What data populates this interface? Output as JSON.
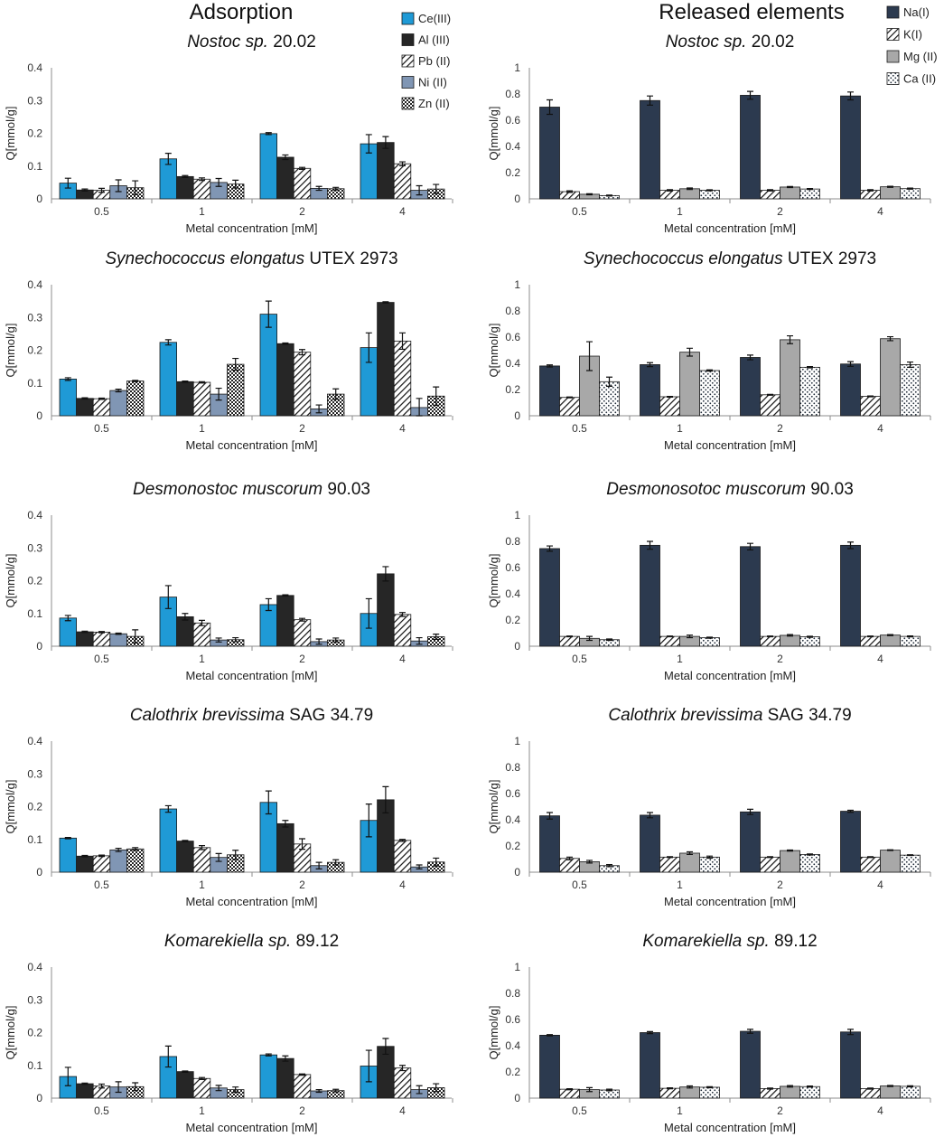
{
  "figure": {
    "left_title": "Adsorption",
    "right_title": "Released elements"
  },
  "chart_data": [
    {
      "type": "bar",
      "group": "adsorption",
      "title_italic": "Nostoc sp.",
      "title_rest": " 20.02",
      "xlabel": "Metal concentration [mM]",
      "ylabel": "Q[mmol/g]",
      "ylim": [
        0,
        0.4
      ],
      "yticks": [
        0,
        0.1,
        0.2,
        0.3,
        0.4
      ],
      "categories": [
        "0.5",
        "1",
        "2",
        "4"
      ],
      "series": [
        {
          "name": "Ce(III)",
          "values": [
            0.048,
            0.122,
            0.199,
            0.168
          ],
          "errors": [
            0.015,
            0.017,
            0.003,
            0.028
          ]
        },
        {
          "name": "Al (III)",
          "values": [
            0.027,
            0.068,
            0.127,
            0.172
          ],
          "errors": [
            0.003,
            0.003,
            0.007,
            0.018
          ]
        },
        {
          "name": "Pb (II)",
          "values": [
            0.026,
            0.06,
            0.093,
            0.107
          ],
          "errors": [
            0.006,
            0.004,
            0.003,
            0.006
          ]
        },
        {
          "name": "Ni (II)",
          "values": [
            0.04,
            0.05,
            0.032,
            0.026
          ],
          "errors": [
            0.018,
            0.012,
            0.006,
            0.014
          ]
        },
        {
          "name": "Zn (II)",
          "values": [
            0.034,
            0.045,
            0.031,
            0.03
          ],
          "errors": [
            0.021,
            0.012,
            0.004,
            0.014
          ]
        }
      ]
    },
    {
      "type": "bar",
      "group": "released",
      "title_italic": "Nostoc sp.",
      "title_rest": " 20.02",
      "xlabel": "Metal concentration [mM]",
      "ylabel": "Q[mmol/g]",
      "ylim": [
        0,
        1
      ],
      "yticks": [
        0,
        0.2,
        0.4,
        0.6,
        0.8,
        1
      ],
      "categories": [
        "0.5",
        "1",
        "2",
        "4"
      ],
      "series": [
        {
          "name": "Na(I)",
          "values": [
            0.7,
            0.75,
            0.79,
            0.785
          ],
          "errors": [
            0.055,
            0.035,
            0.03,
            0.03
          ]
        },
        {
          "name": "K(I)",
          "values": [
            0.055,
            0.065,
            0.065,
            0.065
          ],
          "errors": [
            0.006,
            0.005,
            0.005,
            0.005
          ]
        },
        {
          "name": "Mg (II)",
          "values": [
            0.035,
            0.077,
            0.09,
            0.092
          ],
          "errors": [
            0.004,
            0.006,
            0.004,
            0.004
          ]
        },
        {
          "name": "Ca (II)",
          "values": [
            0.025,
            0.065,
            0.075,
            0.078
          ],
          "errors": [
            0.004,
            0.004,
            0.004,
            0.004
          ]
        }
      ]
    },
    {
      "type": "bar",
      "group": "adsorption",
      "title_italic": "Synechococcus elongatus",
      "title_rest": " UTEX 2973",
      "xlabel": "Metal concentration [mM]",
      "ylabel": "Q[mmol/g]",
      "ylim": [
        0,
        0.4
      ],
      "yticks": [
        0,
        0.1,
        0.2,
        0.3,
        0.4
      ],
      "categories": [
        "0.5",
        "1",
        "2",
        "4"
      ],
      "series": [
        {
          "name": "Ce(III)",
          "values": [
            0.112,
            0.224,
            0.31,
            0.208
          ],
          "errors": [
            0.004,
            0.008,
            0.04,
            0.045
          ]
        },
        {
          "name": "Al (III)",
          "values": [
            0.053,
            0.104,
            0.22,
            0.346
          ],
          "errors": [
            0.002,
            0.002,
            0.002,
            0.002
          ]
        },
        {
          "name": "Pb (II)",
          "values": [
            0.052,
            0.102,
            0.194,
            0.228
          ],
          "errors": [
            0.002,
            0.002,
            0.008,
            0.025
          ]
        },
        {
          "name": "Ni (II)",
          "values": [
            0.077,
            0.066,
            0.021,
            0.025
          ],
          "errors": [
            0.004,
            0.018,
            0.012,
            0.028
          ]
        },
        {
          "name": "Zn (II)",
          "values": [
            0.106,
            0.157,
            0.066,
            0.06
          ],
          "errors": [
            0.002,
            0.018,
            0.016,
            0.028
          ]
        }
      ]
    },
    {
      "type": "bar",
      "group": "released",
      "title_italic": "Synechococcus elongatus",
      "title_rest": " UTEX 2973",
      "xlabel": "Metal concentration [mM]",
      "ylabel": "Q[mmol/g]",
      "ylim": [
        0,
        1
      ],
      "yticks": [
        0,
        0.2,
        0.4,
        0.6,
        0.8,
        1
      ],
      "categories": [
        "0.5",
        "1",
        "2",
        "4"
      ],
      "series": [
        {
          "name": "Na(I)",
          "values": [
            0.38,
            0.39,
            0.445,
            0.395
          ],
          "errors": [
            0.008,
            0.015,
            0.018,
            0.018
          ]
        },
        {
          "name": "K(I)",
          "values": [
            0.14,
            0.145,
            0.16,
            0.148
          ],
          "errors": [
            0.003,
            0.003,
            0.003,
            0.003
          ]
        },
        {
          "name": "Mg (II)",
          "values": [
            0.455,
            0.485,
            0.58,
            0.588
          ],
          "errors": [
            0.11,
            0.03,
            0.03,
            0.015
          ]
        },
        {
          "name": "Ca (II)",
          "values": [
            0.26,
            0.345,
            0.37,
            0.39
          ],
          "errors": [
            0.035,
            0.005,
            0.005,
            0.02
          ]
        }
      ]
    },
    {
      "type": "bar",
      "group": "adsorption",
      "title_italic": "Desmonostoc muscorum",
      "title_rest": " 90.03",
      "xlabel": "Metal concentration [mM]",
      "ylabel": "Q[mmol/g]",
      "ylim": [
        0,
        0.4
      ],
      "yticks": [
        0,
        0.1,
        0.2,
        0.3,
        0.4
      ],
      "categories": [
        "0.5",
        "1",
        "2",
        "4"
      ],
      "series": [
        {
          "name": "Ce(III)",
          "values": [
            0.086,
            0.15,
            0.127,
            0.1
          ],
          "errors": [
            0.008,
            0.035,
            0.018,
            0.045
          ]
        },
        {
          "name": "Al (III)",
          "values": [
            0.044,
            0.09,
            0.155,
            0.221
          ],
          "errors": [
            0.002,
            0.01,
            0.002,
            0.022
          ]
        },
        {
          "name": "Pb (II)",
          "values": [
            0.043,
            0.071,
            0.081,
            0.097
          ],
          "errors": [
            0.002,
            0.008,
            0.004,
            0.006
          ]
        },
        {
          "name": "Ni (II)",
          "values": [
            0.038,
            0.019,
            0.014,
            0.016
          ],
          "errors": [
            0.002,
            0.006,
            0.008,
            0.01
          ]
        },
        {
          "name": "Zn (II)",
          "values": [
            0.03,
            0.02,
            0.019,
            0.029
          ],
          "errors": [
            0.02,
            0.006,
            0.006,
            0.008
          ]
        }
      ]
    },
    {
      "type": "bar",
      "group": "released",
      "title_italic": "Desmonosotoc muscorum",
      "title_rest": " 90.03",
      "xlabel": "Metal concentration [mM]",
      "ylabel": "Q[mmol/g]",
      "ylim": [
        0,
        1
      ],
      "yticks": [
        0,
        0.2,
        0.4,
        0.6,
        0.8,
        1
      ],
      "categories": [
        "0.5",
        "1",
        "2",
        "4"
      ],
      "series": [
        {
          "name": "Na(I)",
          "values": [
            0.745,
            0.77,
            0.76,
            0.77
          ],
          "errors": [
            0.02,
            0.03,
            0.025,
            0.025
          ]
        },
        {
          "name": "K(I)",
          "values": [
            0.075,
            0.075,
            0.075,
            0.075
          ],
          "errors": [
            0.003,
            0.003,
            0.003,
            0.003
          ]
        },
        {
          "name": "Mg (II)",
          "values": [
            0.06,
            0.075,
            0.083,
            0.085
          ],
          "errors": [
            0.015,
            0.01,
            0.006,
            0.004
          ]
        },
        {
          "name": "Ca (II)",
          "values": [
            0.05,
            0.065,
            0.072,
            0.075
          ],
          "errors": [
            0.005,
            0.004,
            0.004,
            0.004
          ]
        }
      ]
    },
    {
      "type": "bar",
      "group": "adsorption",
      "title_italic": "Calothrix brevissima",
      "title_rest": " SAG 34.79",
      "xlabel": "Metal concentration [mM]",
      "ylabel": "Q[mmol/g]",
      "ylim": [
        0,
        0.4
      ],
      "yticks": [
        0,
        0.1,
        0.2,
        0.3,
        0.4
      ],
      "categories": [
        "0.5",
        "1",
        "2",
        "4"
      ],
      "series": [
        {
          "name": "Ce(III)",
          "values": [
            0.104,
            0.193,
            0.213,
            0.158
          ],
          "errors": [
            0.002,
            0.01,
            0.035,
            0.05
          ]
        },
        {
          "name": "Al (III)",
          "values": [
            0.049,
            0.095,
            0.148,
            0.221
          ],
          "errors": [
            0.002,
            0.002,
            0.01,
            0.04
          ]
        },
        {
          "name": "Pb (II)",
          "values": [
            0.05,
            0.075,
            0.086,
            0.097
          ],
          "errors": [
            0.002,
            0.006,
            0.016,
            0.003
          ]
        },
        {
          "name": "Ni (II)",
          "values": [
            0.068,
            0.045,
            0.02,
            0.016
          ],
          "errors": [
            0.005,
            0.012,
            0.01,
            0.006
          ]
        },
        {
          "name": "Zn (II)",
          "values": [
            0.071,
            0.053,
            0.03,
            0.031
          ],
          "errors": [
            0.004,
            0.014,
            0.008,
            0.012
          ]
        }
      ]
    },
    {
      "type": "bar",
      "group": "released",
      "title_italic": "Calothrix brevissima",
      "title_rest": " SAG 34.79",
      "xlabel": "Metal concentration [mM]",
      "ylabel": "Q[mmol/g]",
      "ylim": [
        0,
        1
      ],
      "yticks": [
        0,
        0.2,
        0.4,
        0.6,
        0.8,
        1
      ],
      "categories": [
        "0.5",
        "1",
        "2",
        "4"
      ],
      "series": [
        {
          "name": "Na(I)",
          "values": [
            0.43,
            0.435,
            0.46,
            0.465
          ],
          "errors": [
            0.025,
            0.02,
            0.02,
            0.008
          ]
        },
        {
          "name": "K(I)",
          "values": [
            0.105,
            0.115,
            0.115,
            0.115
          ],
          "errors": [
            0.01,
            0.003,
            0.003,
            0.003
          ]
        },
        {
          "name": "Mg (II)",
          "values": [
            0.08,
            0.145,
            0.165,
            0.168
          ],
          "errors": [
            0.01,
            0.01,
            0.004,
            0.003
          ]
        },
        {
          "name": "Ca (II)",
          "values": [
            0.05,
            0.115,
            0.135,
            0.13
          ],
          "errors": [
            0.008,
            0.008,
            0.004,
            0.003
          ]
        }
      ]
    },
    {
      "type": "bar",
      "group": "adsorption",
      "title_italic": "Komarekiella sp.",
      "title_rest": " 89.12",
      "xlabel": "Metal concentration [mM]",
      "ylabel": "Q[mmol/g]",
      "ylim": [
        0,
        0.4
      ],
      "yticks": [
        0,
        0.1,
        0.2,
        0.3,
        0.4
      ],
      "categories": [
        "0.5",
        "1",
        "2",
        "4"
      ],
      "series": [
        {
          "name": "Ce(III)",
          "values": [
            0.066,
            0.127,
            0.132,
            0.098
          ],
          "errors": [
            0.028,
            0.032,
            0.003,
            0.048
          ]
        },
        {
          "name": "Al (III)",
          "values": [
            0.044,
            0.081,
            0.121,
            0.158
          ],
          "errors": [
            0.002,
            0.002,
            0.008,
            0.024
          ]
        },
        {
          "name": "Pb (II)",
          "values": [
            0.037,
            0.06,
            0.072,
            0.092
          ],
          "errors": [
            0.006,
            0.003,
            0.002,
            0.008
          ]
        },
        {
          "name": "Ni (II)",
          "values": [
            0.034,
            0.031,
            0.022,
            0.026
          ],
          "errors": [
            0.016,
            0.008,
            0.004,
            0.012
          ]
        },
        {
          "name": "Zn (II)",
          "values": [
            0.035,
            0.026,
            0.023,
            0.032
          ],
          "errors": [
            0.012,
            0.008,
            0.004,
            0.012
          ]
        }
      ]
    },
    {
      "type": "bar",
      "group": "released",
      "title_italic": "Komarekiella sp.",
      "title_rest": " 89.12",
      "xlabel": "Metal concentration [mM]",
      "ylabel": "Q[mmol/g]",
      "ylim": [
        0,
        1
      ],
      "yticks": [
        0,
        0.2,
        0.4,
        0.6,
        0.8,
        1
      ],
      "categories": [
        "0.5",
        "1",
        "2",
        "4"
      ],
      "series": [
        {
          "name": "Na(I)",
          "values": [
            0.48,
            0.5,
            0.51,
            0.505
          ],
          "errors": [
            0.005,
            0.008,
            0.015,
            0.02
          ]
        },
        {
          "name": "K(I)",
          "values": [
            0.068,
            0.075,
            0.073,
            0.073
          ],
          "errors": [
            0.004,
            0.004,
            0.004,
            0.004
          ]
        },
        {
          "name": "Mg (II)",
          "values": [
            0.065,
            0.085,
            0.09,
            0.093
          ],
          "errors": [
            0.015,
            0.008,
            0.006,
            0.004
          ]
        },
        {
          "name": "Ca (II)",
          "values": [
            0.062,
            0.083,
            0.088,
            0.09
          ],
          "errors": [
            0.006,
            0.004,
            0.004,
            0.004
          ]
        }
      ]
    }
  ],
  "legends": {
    "adsorption": [
      {
        "name": "Ce(III)",
        "fill": "ce"
      },
      {
        "name": "Al (III)",
        "fill": "al"
      },
      {
        "name": "Pb (II)",
        "fill": "pb"
      },
      {
        "name": "Ni (II)",
        "fill": "ni"
      },
      {
        "name": "Zn (II)",
        "fill": "zn"
      }
    ],
    "released": [
      {
        "name": "Na(I)",
        "fill": "na"
      },
      {
        "name": "K(I)",
        "fill": "k"
      },
      {
        "name": "Mg (II)",
        "fill": "mg"
      },
      {
        "name": "Ca (II)",
        "fill": "ca"
      }
    ]
  },
  "colors": {
    "ce": "#1f9ad6",
    "al": "#262626",
    "ni": "#8096b4",
    "na": "#2c3a4f",
    "mg": "#a8a8a8",
    "axis": "#8c8c8c"
  }
}
